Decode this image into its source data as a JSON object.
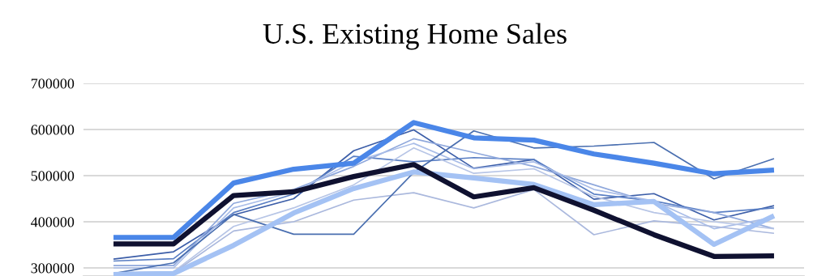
{
  "chart_data": {
    "type": "line",
    "title": "U.S. Existing Home Sales",
    "categories": [
      null,
      null,
      null,
      null,
      null,
      null,
      null,
      null,
      null,
      null,
      null,
      null
    ],
    "series": [
      {
        "color": "#3c5ea8",
        "values": [
          319000,
          335000,
          415000,
          450000,
          554000,
          599000,
          516000,
          535000,
          449000,
          461000,
          404000,
          435000
        ]
      },
      {
        "color": "#5a7fc4",
        "values": [
          315000,
          320000,
          420000,
          460000,
          542000,
          530000,
          539000,
          535000,
          460000,
          445000,
          420000,
          430000
        ]
      },
      {
        "color": "#8fa8dc",
        "values": [
          305000,
          305000,
          440000,
          470000,
          520000,
          580000,
          550000,
          520000,
          480000,
          440000,
          420000,
          385000
        ]
      },
      {
        "color": "#a9bde8",
        "values": [
          300000,
          300000,
          430000,
          465000,
          530000,
          570000,
          515000,
          530000,
          470000,
          445000,
          385000,
          410000
        ]
      },
      {
        "color": "#b7c5e6",
        "values": [
          290000,
          292000,
          390000,
          430000,
          480000,
          560000,
          505000,
          515000,
          455000,
          420000,
          400000,
          385000
        ]
      },
      {
        "color": "#aab8dd",
        "values": [
          285000,
          290000,
          380000,
          400000,
          447000,
          463000,
          430000,
          470000,
          372000,
          402000,
          390000,
          375000
        ]
      },
      {
        "color": "#4a6fb0",
        "values": [
          288000,
          311000,
          416000,
          373000,
          373000,
          507000,
          597000,
          560000,
          564000,
          572000,
          493000,
          537000
        ]
      },
      {
        "color": "#a4c2f4",
        "values": [
          286000,
          288000,
          349000,
          419000,
          472000,
          508000,
          495000,
          481000,
          437000,
          444000,
          351000,
          413000
        ]
      },
      {
        "color": "#0f1130",
        "values": [
          352000,
          352000,
          457000,
          465000,
          498000,
          524000,
          454000,
          474000,
          425000,
          372000,
          325000,
          326000
        ]
      },
      {
        "color": "#4a86e8",
        "values": [
          366000,
          366000,
          484000,
          514000,
          527000,
          615000,
          582000,
          577000,
          547000,
          527000,
          504000,
          512000
        ]
      }
    ],
    "ylim": [
      282500,
      700000
    ],
    "yticks": [
      300000,
      400000,
      500000,
      600000,
      700000
    ],
    "grid": "y",
    "tick_labels": "y"
  }
}
